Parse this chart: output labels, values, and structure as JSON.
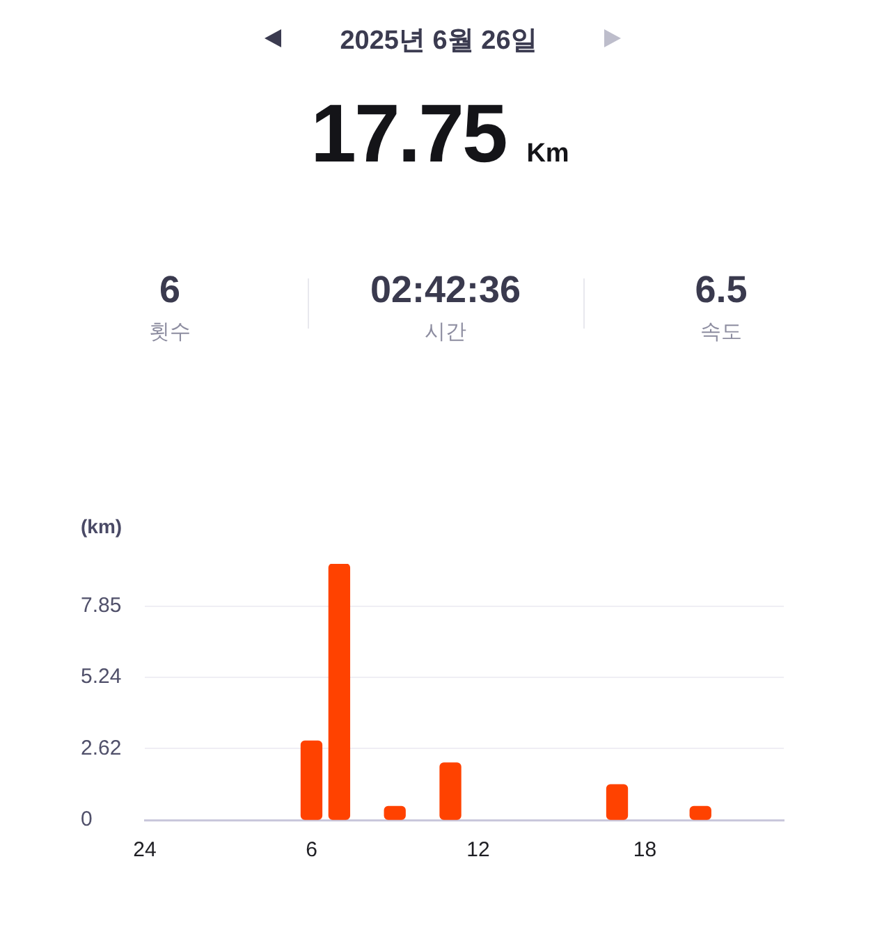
{
  "chart_data": {
    "type": "bar",
    "title": "2025년 6월 26일",
    "subtitle": "17.75 Km",
    "annotations": [
      "6",
      "횟수",
      "02:42:36",
      "시간",
      "6.5",
      "속도"
    ],
    "ylabel": "(km)",
    "categories": [
      "24",
      null,
      null,
      null,
      null,
      null,
      "6",
      null,
      null,
      null,
      null,
      null,
      "12",
      null,
      null,
      null,
      null,
      null,
      "18",
      null,
      null,
      null,
      null,
      null
    ],
    "values": [
      null,
      null,
      null,
      null,
      null,
      null,
      2.9,
      9.4,
      null,
      0.5,
      null,
      2.1,
      null,
      null,
      null,
      null,
      null,
      1.3,
      null,
      null,
      0.5,
      null,
      null,
      null
    ],
    "color": "#ff4200",
    "ylim": [
      0,
      9.4
    ],
    "yticks": [
      0,
      2.62,
      5.24,
      7.85
    ],
    "grid": "y"
  }
}
